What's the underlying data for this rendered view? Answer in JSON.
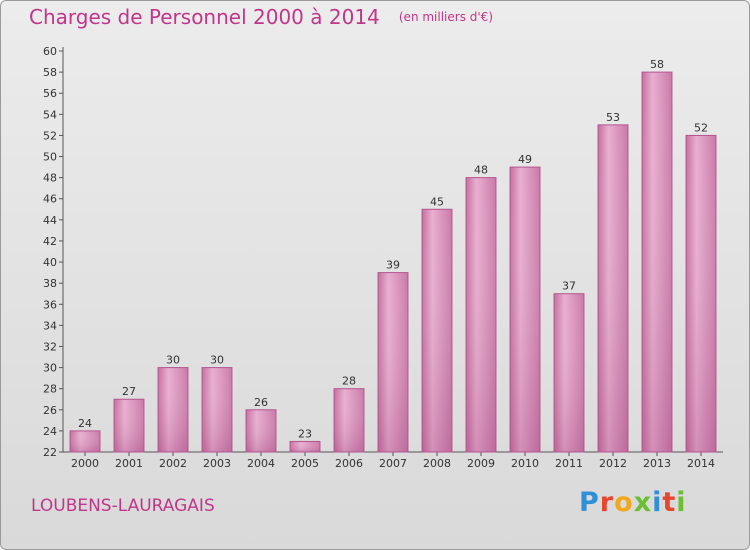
{
  "header": {
    "title": "Charges de Personnel 2000 à 2014",
    "subtitle": "(en milliers d'€)"
  },
  "footer": {
    "commune": "LOUBENS-LAURAGAIS",
    "brand_letters": [
      "P",
      "r",
      "o",
      "x",
      "i",
      "t",
      "i"
    ],
    "brand_colors": [
      "#2f8fd8",
      "#e7462e",
      "#f2a81d",
      "#6bbf33",
      "#2f8fd8",
      "#e7462e",
      "#6bbf33"
    ]
  },
  "chart_data": {
    "type": "bar",
    "title": "Charges de Personnel 2000 à 2014",
    "subtitle": "(en milliers d'€)",
    "xlabel": "",
    "ylabel": "",
    "categories": [
      "2000",
      "2001",
      "2002",
      "2003",
      "2004",
      "2005",
      "2006",
      "2007",
      "2008",
      "2009",
      "2010",
      "2011",
      "2012",
      "2013",
      "2014"
    ],
    "values": [
      24,
      27,
      30,
      30,
      26,
      23,
      28,
      39,
      45,
      48,
      49,
      37,
      53,
      58,
      52
    ],
    "ylim": [
      22,
      60
    ],
    "yticks": [
      22,
      24,
      26,
      28,
      30,
      32,
      34,
      36,
      38,
      40,
      42,
      44,
      46,
      48,
      50,
      52,
      54,
      56,
      58,
      60
    ],
    "grid": false,
    "bar_color": "#d98fbb",
    "bar_edge_color": "#b4558f"
  }
}
